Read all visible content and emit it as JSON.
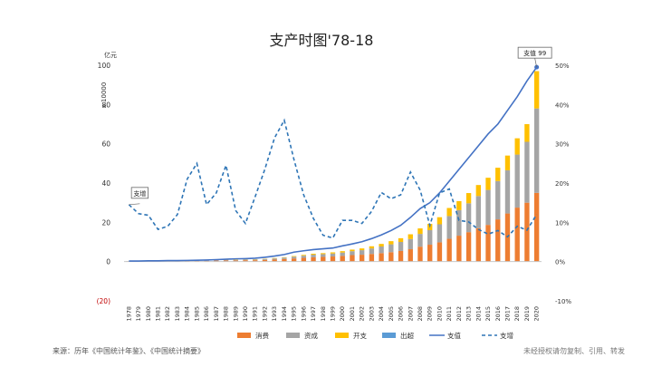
{
  "chart_data": {
    "type": "bar",
    "title": "支产时图'78-18",
    "unit_label": "亿元",
    "y_multiplier_label": "x 10000",
    "ylim": [
      -20,
      100
    ],
    "y_ticks": [
      -20,
      0,
      20,
      40,
      60,
      80,
      100
    ],
    "y_tick_labels": [
      "(20)",
      "0",
      "20",
      "40",
      "60",
      "80",
      "100"
    ],
    "y2lim": [
      -10,
      50
    ],
    "y2_ticks": [
      -10,
      0,
      10,
      20,
      30,
      40,
      50
    ],
    "y2_tick_labels": [
      "-10%",
      "0%",
      "10%",
      "20%",
      "30%",
      "40%",
      "50%"
    ],
    "categories": [
      "1978",
      "1979",
      "1980",
      "1981",
      "1982",
      "1983",
      "1984",
      "1985",
      "1986",
      "1987",
      "1988",
      "1989",
      "1990",
      "1991",
      "1992",
      "1993",
      "1994",
      "1995",
      "1996",
      "1997",
      "1998",
      "1999",
      "2000",
      "2001",
      "2002",
      "2003",
      "2004",
      "2005",
      "2006",
      "2007",
      "2008",
      "2009",
      "2010",
      "2011",
      "2012",
      "2013",
      "2014",
      "2015",
      "2016",
      "2017",
      "2018",
      "2019",
      "2020"
    ],
    "series": [
      {
        "name": "消费",
        "kind": "bar",
        "color": "#ED7D31",
        "values": [
          0.2,
          0.2,
          0.2,
          0.3,
          0.3,
          0.3,
          0.3,
          0.4,
          0.4,
          0.5,
          0.6,
          0.6,
          0.7,
          0.7,
          0.8,
          1.0,
          1.3,
          1.6,
          1.9,
          2.2,
          2.4,
          2.6,
          2.9,
          3.3,
          3.5,
          3.9,
          4.3,
          4.8,
          5.4,
          6.3,
          7.6,
          8.6,
          9.8,
          11.6,
          13.2,
          15.0,
          17.0,
          18.7,
          21.5,
          24.5,
          27.5,
          30.0,
          35.0
        ]
      },
      {
        "name": "资成",
        "kind": "bar",
        "color": "#A5A5A5",
        "values": [
          0.1,
          0.1,
          0.1,
          0.1,
          0.1,
          0.1,
          0.2,
          0.2,
          0.2,
          0.3,
          0.3,
          0.3,
          0.3,
          0.4,
          0.5,
          0.6,
          0.7,
          0.9,
          1.1,
          1.3,
          1.4,
          1.5,
          1.7,
          2.0,
          2.3,
          2.8,
          3.4,
          4.0,
          4.6,
          5.2,
          6.5,
          7.4,
          9.2,
          11.6,
          13.0,
          14.7,
          16.4,
          17.8,
          19.5,
          22.0,
          27.0,
          31.0,
          43.0
        ]
      },
      {
        "name": "开支",
        "kind": "bar",
        "color": "#FFC000",
        "values": [
          0.0,
          0.0,
          0.0,
          0.0,
          0.0,
          0.0,
          0.0,
          0.0,
          0.1,
          0.1,
          0.1,
          0.1,
          0.1,
          0.1,
          0.1,
          0.2,
          0.2,
          0.3,
          0.4,
          0.5,
          0.5,
          0.6,
          0.7,
          0.8,
          0.9,
          1.1,
          1.3,
          1.6,
          1.9,
          2.4,
          2.8,
          3.2,
          3.6,
          4.1,
          4.6,
          5.2,
          5.6,
          6.2,
          6.8,
          7.5,
          8.3,
          9.0,
          19.0
        ]
      },
      {
        "name": "出超",
        "kind": "bar",
        "color": "#5B9BD5",
        "values": [
          0,
          0,
          0,
          0,
          0,
          0,
          0,
          0,
          0,
          0,
          0,
          0,
          0,
          0,
          0,
          0,
          0,
          0,
          0,
          0,
          0,
          0,
          0,
          0,
          0,
          0,
          0,
          0,
          0,
          0,
          0,
          0,
          0,
          0,
          0,
          0,
          0,
          0,
          0,
          0,
          0,
          0,
          0
        ]
      },
      {
        "name": "支值",
        "kind": "line",
        "color": "#4472C4",
        "axis": "left",
        "values": [
          0.3,
          0.3,
          0.4,
          0.4,
          0.5,
          0.5,
          0.6,
          0.7,
          0.8,
          1.0,
          1.2,
          1.4,
          1.5,
          1.7,
          2.2,
          2.8,
          3.6,
          4.8,
          5.5,
          6.1,
          6.5,
          6.9,
          8.0,
          9.0,
          10.1,
          11.7,
          13.6,
          15.8,
          18.5,
          22.5,
          27.0,
          30.0,
          35.0,
          41.0,
          47.0,
          53.0,
          59.0,
          65.0,
          70.0,
          77.0,
          84.0,
          92.0,
          99.0
        ]
      },
      {
        "name": "支增",
        "kind": "dashed-line",
        "color": "#2E75B6",
        "axis": "right",
        "values": [
          14.5,
          12.2,
          11.8,
          8.2,
          9.0,
          12.0,
          21.0,
          25.0,
          14.5,
          17.5,
          24.5,
          13.0,
          9.7,
          16.5,
          23.5,
          31.5,
          36.0,
          26.0,
          17.0,
          11.0,
          6.7,
          6.0,
          10.5,
          10.5,
          9.7,
          12.8,
          17.6,
          16.0,
          17.0,
          22.8,
          18.2,
          9.2,
          17.5,
          18.5,
          10.5,
          10.1,
          8.2,
          7.0,
          7.9,
          6.3,
          9.0,
          8.0,
          12.0
        ]
      }
    ],
    "annotations": [
      {
        "text": "支值 99",
        "target": "支值",
        "category": "2020"
      },
      {
        "text": "支增",
        "target": "支增",
        "category": "1978"
      }
    ],
    "legend_position": "bottom",
    "grid": false
  },
  "footer": {
    "source": "来源：历年《中国统计年鉴》、《中国统计摘要》",
    "notice": "未经授权请勿复制、引用、转发"
  }
}
